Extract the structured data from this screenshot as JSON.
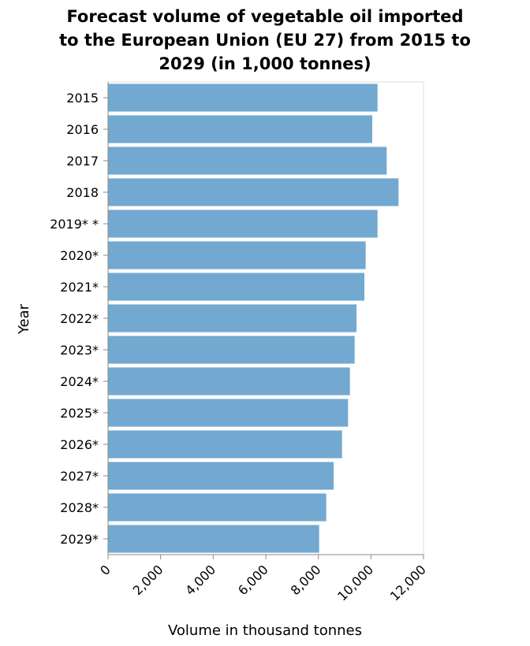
{
  "chart_data": {
    "type": "bar",
    "orientation": "horizontal",
    "title_lines": [
      "Forecast volume of vegetable oil imported",
      "to the European Union (EU 27) from 2015 to",
      "2029 (in 1,000 tonnes)"
    ],
    "xlabel": "Volume in thousand tonnes",
    "ylabel": "Year",
    "categories": [
      "2015",
      "2016",
      "2017",
      "2018",
      "2019* *",
      "2020*",
      "2021*",
      "2022*",
      "2023*",
      "2024*",
      "2025*",
      "2026*",
      "2027*",
      "2028*",
      "2029*"
    ],
    "values": [
      10250,
      10050,
      10600,
      11050,
      10250,
      9800,
      9750,
      9450,
      9380,
      9200,
      9130,
      8900,
      8580,
      8300,
      8030
    ],
    "xlim": [
      0,
      12000
    ],
    "xticks": [
      0,
      2000,
      4000,
      6000,
      8000,
      10000,
      12000
    ],
    "xtick_labels": [
      "0",
      "2,000",
      "4,000",
      "6,000",
      "8,000",
      "10,000",
      "12,000"
    ],
    "bar_color": "#73a9d0",
    "grid": false,
    "legend": "none"
  }
}
